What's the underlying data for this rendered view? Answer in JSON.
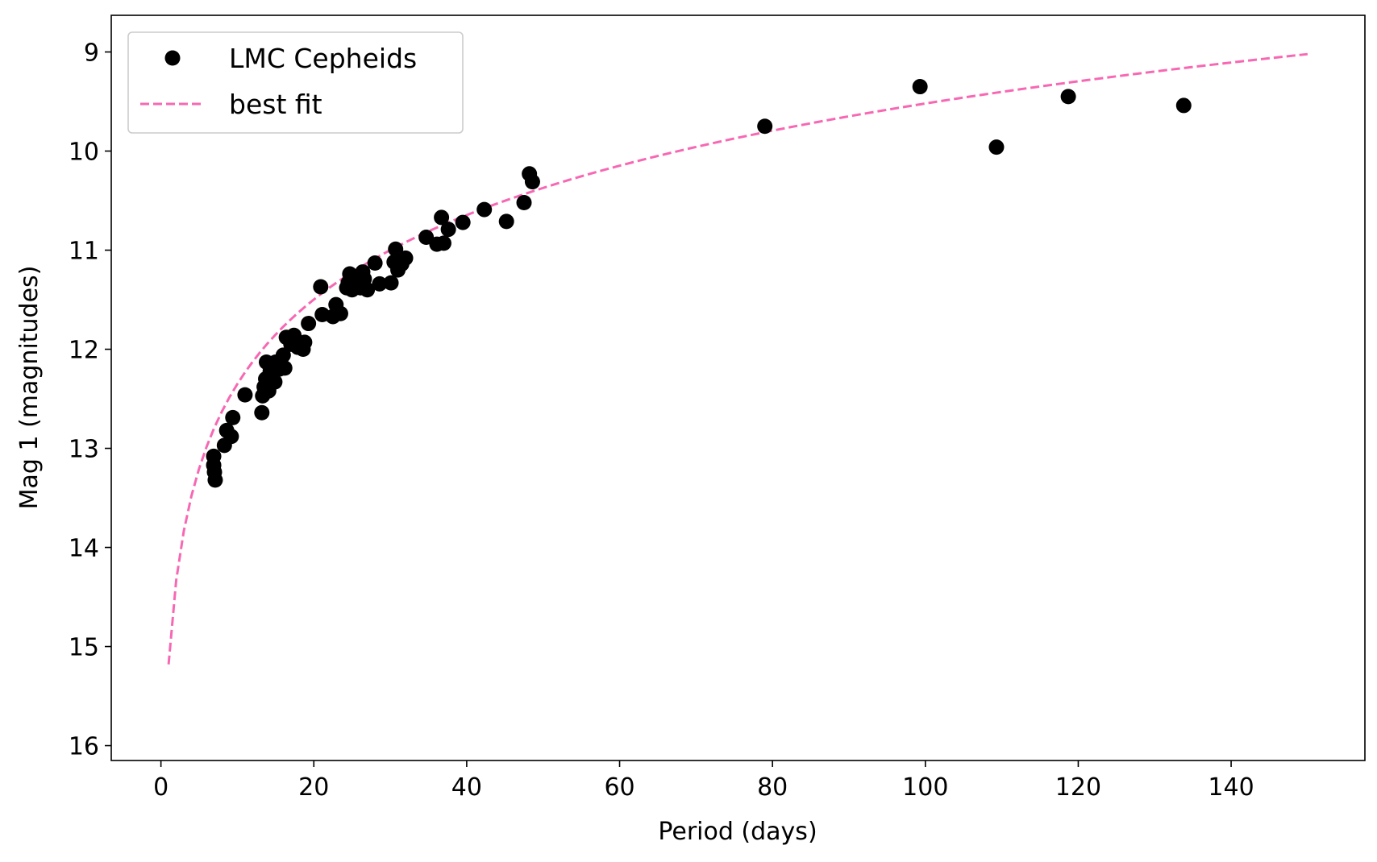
{
  "chart_data": {
    "type": "scatter",
    "xlabel": "Period (days)",
    "ylabel": "Mag 1 (magnitudes)",
    "xlim": [
      -6.5,
      157.5
    ],
    "ylim": [
      16.15,
      8.63
    ],
    "y_inverted": true,
    "xticks": [
      0,
      20,
      40,
      60,
      80,
      100,
      120,
      140
    ],
    "yticks": [
      9,
      10,
      11,
      12,
      13,
      14,
      15,
      16
    ],
    "grid": false,
    "legend_placement": "top-left",
    "series": [
      {
        "name": "LMC Cepheids",
        "kind": "scatter",
        "color": "#000000",
        "points": [
          [
            6.9,
            13.08
          ],
          [
            6.9,
            13.17
          ],
          [
            7.0,
            13.24
          ],
          [
            7.1,
            13.32
          ],
          [
            8.3,
            12.97
          ],
          [
            8.6,
            12.82
          ],
          [
            9.2,
            12.88
          ],
          [
            9.4,
            12.69
          ],
          [
            11.0,
            12.46
          ],
          [
            13.2,
            12.64
          ],
          [
            13.3,
            12.47
          ],
          [
            13.5,
            12.38
          ],
          [
            13.7,
            12.3
          ],
          [
            13.8,
            12.13
          ],
          [
            14.1,
            12.42
          ],
          [
            14.3,
            12.22
          ],
          [
            14.9,
            12.33
          ],
          [
            15.0,
            12.13
          ],
          [
            15.5,
            12.2
          ],
          [
            16.0,
            12.06
          ],
          [
            16.2,
            12.19
          ],
          [
            16.4,
            11.88
          ],
          [
            17.0,
            11.95
          ],
          [
            17.4,
            11.86
          ],
          [
            17.9,
            11.98
          ],
          [
            18.6,
            12.0
          ],
          [
            18.8,
            11.93
          ],
          [
            19.3,
            11.74
          ],
          [
            20.9,
            11.37
          ],
          [
            21.1,
            11.65
          ],
          [
            22.5,
            11.67
          ],
          [
            22.9,
            11.55
          ],
          [
            23.1,
            11.62
          ],
          [
            23.5,
            11.64
          ],
          [
            24.3,
            11.38
          ],
          [
            24.5,
            11.33
          ],
          [
            24.7,
            11.24
          ],
          [
            25.0,
            11.4
          ],
          [
            25.4,
            11.3
          ],
          [
            26.1,
            11.38
          ],
          [
            26.4,
            11.22
          ],
          [
            26.6,
            11.29
          ],
          [
            27.0,
            11.4
          ],
          [
            28.0,
            11.13
          ],
          [
            28.6,
            11.34
          ],
          [
            30.1,
            11.33
          ],
          [
            30.5,
            11.12
          ],
          [
            30.7,
            10.99
          ],
          [
            31.0,
            11.2
          ],
          [
            31.5,
            11.14
          ],
          [
            32.0,
            11.08
          ],
          [
            34.7,
            10.87
          ],
          [
            36.1,
            10.94
          ],
          [
            36.7,
            10.67
          ],
          [
            37.0,
            10.93
          ],
          [
            37.6,
            10.79
          ],
          [
            39.5,
            10.72
          ],
          [
            42.3,
            10.59
          ],
          [
            45.2,
            10.71
          ],
          [
            47.5,
            10.52
          ],
          [
            48.2,
            10.23
          ],
          [
            48.6,
            10.31
          ],
          [
            79.0,
            9.75
          ],
          [
            99.3,
            9.35
          ],
          [
            109.3,
            9.96
          ],
          [
            118.7,
            9.45
          ],
          [
            133.8,
            9.54
          ]
        ]
      },
      {
        "name": "best fit",
        "kind": "line",
        "style": "dashed",
        "color": "#f768b3",
        "fit": {
          "slope": -2.83,
          "intercept": 15.18,
          "xmin": 1,
          "xmax": 150,
          "samples": 150
        }
      }
    ]
  }
}
